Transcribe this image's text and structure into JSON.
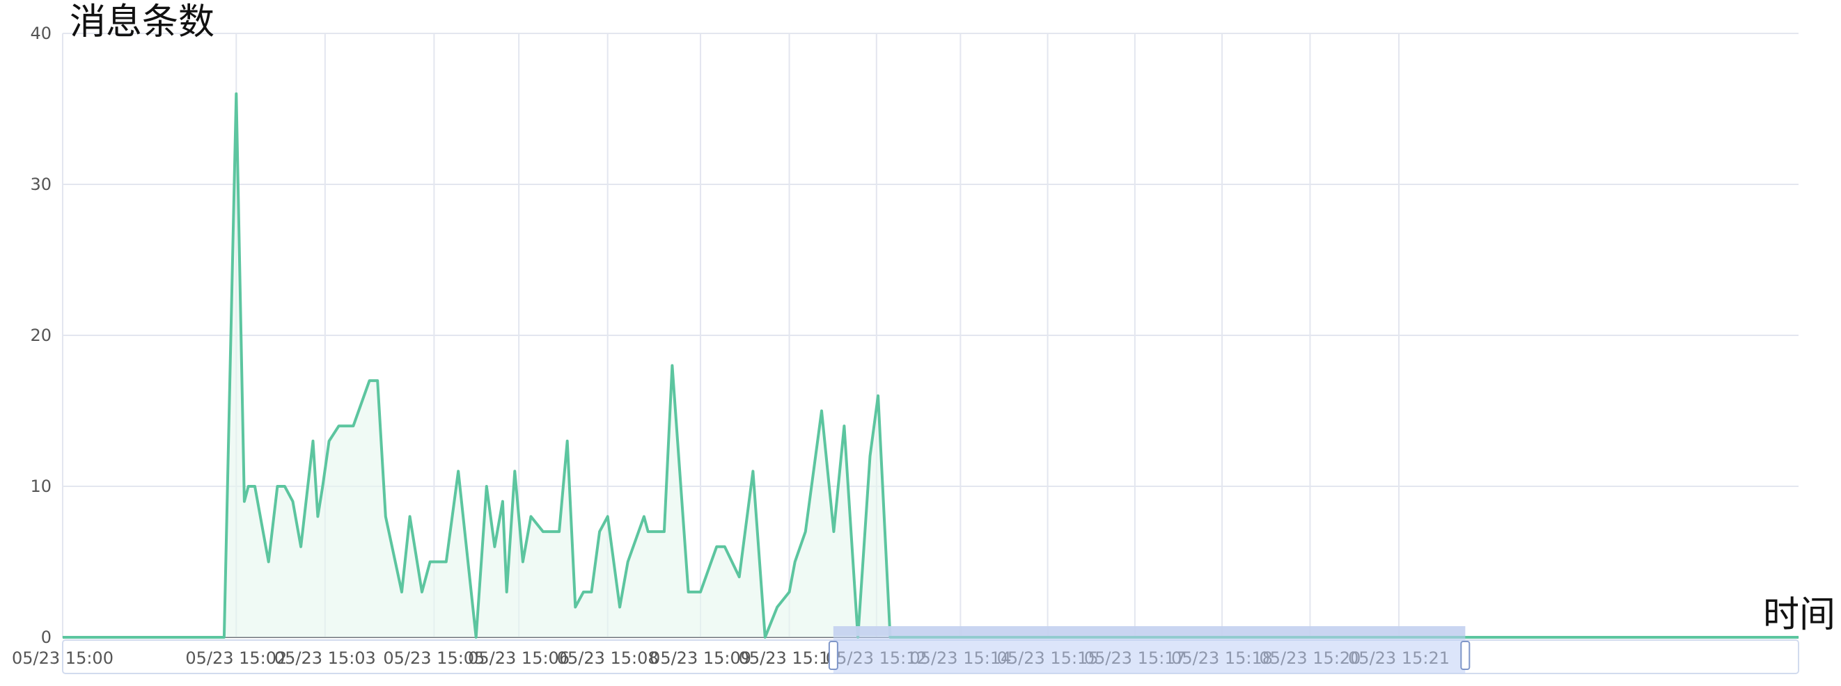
{
  "chart_data": {
    "type": "area",
    "ylabel": "消息条数",
    "xlabel": "时间",
    "ylim": [
      0,
      40
    ],
    "y_ticks": [
      0,
      10,
      20,
      30,
      40
    ],
    "x_axis_ticks": [
      "05/23 15:00",
      "05/23 15:02",
      "05/23 15:03",
      "05/23 15:05",
      "05/23 15:06",
      "05/23 15:08",
      "05/23 15:09",
      "05/23 15:11",
      "05/23 15:12",
      "05/23 15:14",
      "05/23 15:15",
      "05/23 15:17",
      "05/23 15:18",
      "05/23 15:20",
      "05/23 15:21"
    ],
    "grid": true,
    "line_color": "#5cc59f",
    "fill_color": "#e6f6ef",
    "x_unit": "minutes after 05/23 15:00",
    "series": [
      {
        "x": [
          0.0,
          2.0,
          2.15,
          2.25,
          2.3,
          2.38,
          2.55,
          2.66,
          2.75,
          2.85,
          2.95,
          3.1,
          3.16,
          3.22,
          3.3,
          3.42,
          3.6,
          3.8,
          3.9,
          4.0,
          4.2,
          4.3,
          4.45,
          4.55,
          4.65,
          4.75,
          4.9,
          5.12,
          5.25,
          5.35,
          5.45,
          5.5,
          5.6,
          5.7,
          5.8,
          5.95,
          6.07,
          6.15,
          6.25,
          6.35,
          6.45,
          6.55,
          6.65,
          6.75,
          6.9,
          7.0,
          7.2,
          7.25,
          7.45,
          7.55,
          7.75,
          7.9,
          8.1,
          8.2,
          8.38,
          8.55,
          8.7,
          8.85,
          9.0,
          9.07,
          9.2,
          9.4,
          9.55,
          9.68,
          9.85,
          10.0,
          10.1,
          10.25,
          10.35,
          10.5,
          10.63,
          10.8,
          10.98,
          11.08,
          11.3,
          11.45,
          11.55,
          11.72,
          11.85,
          12.0,
          12.5,
          17.0,
          21.5
        ],
        "y": [
          0,
          0,
          36,
          9,
          10,
          10,
          5,
          10,
          10,
          9,
          6,
          13,
          8,
          10,
          13,
          14,
          14,
          17,
          17,
          8,
          3,
          8,
          3,
          5,
          5,
          5,
          11,
          0,
          10,
          6,
          9,
          3,
          11,
          5,
          8,
          7,
          7,
          7,
          13,
          2,
          3,
          3,
          7,
          8,
          2,
          5,
          8,
          7,
          7,
          18,
          3,
          3,
          6,
          6,
          4,
          11,
          0,
          2,
          3,
          5,
          7,
          15,
          7,
          14,
          0,
          12,
          16,
          0,
          0,
          0,
          0,
          0,
          0,
          0,
          0,
          0,
          0,
          0,
          0,
          0,
          0,
          0,
          0
        ]
      }
    ],
    "datazoom": {
      "start_fraction": 0.444,
      "end_fraction": 0.808
    }
  }
}
